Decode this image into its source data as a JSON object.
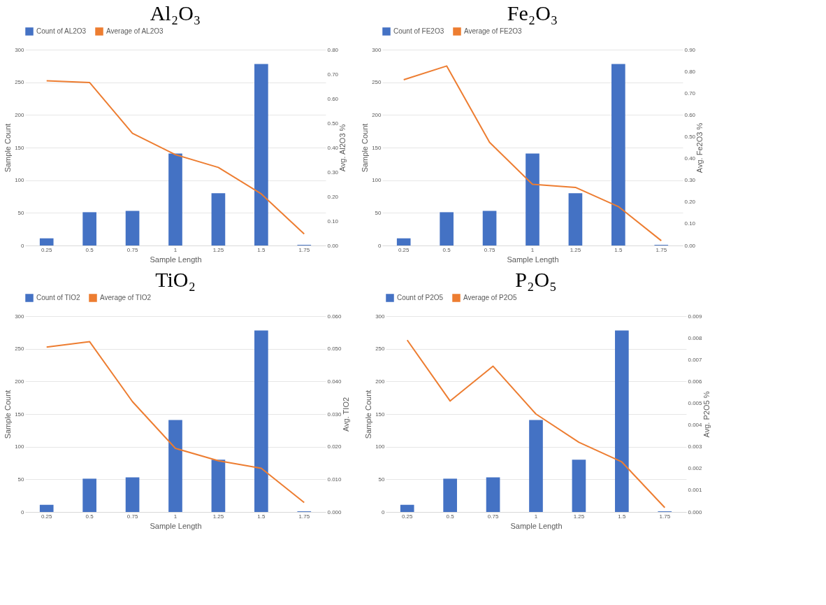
{
  "chart_data": [
    {
      "type": "bar",
      "title": "Al₂O₃",
      "xlabel": "Sample Length",
      "ylabel": "Sample Count",
      "y2label": "Avg. Al2O3 %",
      "categories": [
        "0.25",
        "0.5",
        "0.75",
        "1",
        "1.25",
        "1.5",
        "1.75"
      ],
      "series": [
        {
          "name": "Count of AL2O3",
          "color": "#4472c4",
          "values": [
            11,
            51,
            53,
            141,
            80,
            278,
            1
          ]
        },
        {
          "name": "Average of AL2O3",
          "type": "line",
          "axis": "y2",
          "color": "#ed7d31",
          "values": [
            0.673,
            0.666,
            0.458,
            0.371,
            0.319,
            0.211,
            0.047
          ]
        }
      ],
      "ylim": [
        0,
        300
      ],
      "yticks": [
        0,
        50,
        100,
        150,
        200,
        250,
        300
      ],
      "y2lim": [
        0,
        0.8
      ],
      "y2ticks": [
        {
          "value": 0,
          "label": "0.00"
        },
        {
          "value": 0.1,
          "label": "0.10"
        },
        {
          "value": 0.2,
          "label": "0.20"
        },
        {
          "value": 0.3,
          "label": "0.30"
        },
        {
          "value": 0.4,
          "label": "0.40"
        },
        {
          "value": 0.5,
          "label": "0.50"
        },
        {
          "value": 0.6,
          "label": "0.60"
        },
        {
          "value": 0.7,
          "label": "0.70"
        },
        {
          "value": 0.8,
          "label": "0.80"
        }
      ],
      "grid": "y",
      "legend": "top"
    },
    {
      "type": "bar",
      "title": "Fe₂O₃",
      "xlabel": "Sample Length",
      "ylabel": "Sample Count",
      "y2label": "Avg. Fe2O3 %",
      "categories": [
        "0.25",
        "0.5",
        "0.75",
        "1",
        "1.25",
        "1.5",
        "1.75"
      ],
      "series": [
        {
          "name": "Count of FE2O3",
          "color": "#4472c4",
          "values": [
            11,
            51,
            53,
            141,
            80,
            278,
            1
          ]
        },
        {
          "name": "Average of FE2O3",
          "type": "line",
          "axis": "y2",
          "color": "#ed7d31",
          "values": [
            0.762,
            0.825,
            0.474,
            0.281,
            0.267,
            0.179,
            0.022
          ]
        }
      ],
      "ylim": [
        0,
        300
      ],
      "yticks": [
        0,
        50,
        100,
        150,
        200,
        250,
        300
      ],
      "y2lim": [
        0,
        0.9
      ],
      "y2ticks": [
        {
          "value": 0,
          "label": "0.00"
        },
        {
          "value": 0.1,
          "label": "0.10"
        },
        {
          "value": 0.2,
          "label": "0.20"
        },
        {
          "value": 0.3,
          "label": "0.30"
        },
        {
          "value": 0.4,
          "label": "0.40"
        },
        {
          "value": 0.5,
          "label": "0.50"
        },
        {
          "value": 0.6,
          "label": "0.60"
        },
        {
          "value": 0.7,
          "label": "0.70"
        },
        {
          "value": 0.8,
          "label": "0.80"
        },
        {
          "value": 0.9,
          "label": "0.90"
        }
      ],
      "grid": "y",
      "legend": "top"
    },
    {
      "type": "bar",
      "title": "TiO₂",
      "xlabel": "Sample Length",
      "ylabel": "Sample Count",
      "y2label": "Avg. TIO2",
      "categories": [
        "0.25",
        "0.5",
        "0.75",
        "1",
        "1.25",
        "1.5",
        "1.75"
      ],
      "series": [
        {
          "name": "Count of TIO2",
          "color": "#4472c4",
          "values": [
            11,
            51,
            53,
            141,
            80,
            278,
            1
          ]
        },
        {
          "name": "Average of TIO2",
          "type": "line",
          "axis": "y2",
          "color": "#ed7d31",
          "values": [
            0.0505,
            0.0522,
            0.0338,
            0.0195,
            0.0157,
            0.0134,
            0.0029
          ]
        }
      ],
      "ylim": [
        0,
        300
      ],
      "yticks": [
        0,
        50,
        100,
        150,
        200,
        250,
        300
      ],
      "y2lim": [
        0,
        0.06
      ],
      "y2ticks": [
        {
          "value": 0,
          "label": "0.000"
        },
        {
          "value": 0.01,
          "label": "0.010"
        },
        {
          "value": 0.02,
          "label": "0.020"
        },
        {
          "value": 0.03,
          "label": "0.030"
        },
        {
          "value": 0.04,
          "label": "0.040"
        },
        {
          "value": 0.05,
          "label": "0.050"
        },
        {
          "value": 0.06,
          "label": "0.060"
        }
      ],
      "grid": "y",
      "legend": "top"
    },
    {
      "type": "bar",
      "title": "P₂O₅",
      "xlabel": "Sample Length",
      "ylabel": "Sample Count",
      "y2label": "Avg. P2O5 %",
      "categories": [
        "0.25",
        "0.5",
        "0.75",
        "1",
        "1.25",
        "1.5",
        "1.75"
      ],
      "series": [
        {
          "name": "Count of P2O5",
          "color": "#4472c4",
          "values": [
            11,
            51,
            53,
            141,
            80,
            278,
            1
          ]
        },
        {
          "name": "Average of P2O5",
          "type": "line",
          "axis": "y2",
          "color": "#ed7d31",
          "values": [
            0.0079,
            0.0051,
            0.0067,
            0.0045,
            0.0032,
            0.0023,
            0.0002
          ]
        }
      ],
      "ylim": [
        0,
        300
      ],
      "yticks": [
        0,
        50,
        100,
        150,
        200,
        250,
        300
      ],
      "y2lim": [
        0,
        0.009
      ],
      "y2ticks": [
        {
          "value": 0,
          "label": "0.000"
        },
        {
          "value": 0.001,
          "label": "0.001"
        },
        {
          "value": 0.002,
          "label": "0.002"
        },
        {
          "value": 0.003,
          "label": "0.003"
        },
        {
          "value": 0.004,
          "label": "0.004"
        },
        {
          "value": 0.005,
          "label": "0.005"
        },
        {
          "value": 0.006,
          "label": "0.006"
        },
        {
          "value": 0.007,
          "label": "0.007"
        },
        {
          "value": 0.008,
          "label": "0.008"
        },
        {
          "value": 0.009,
          "label": "0.009"
        }
      ],
      "grid": "y",
      "legend": "top"
    }
  ]
}
